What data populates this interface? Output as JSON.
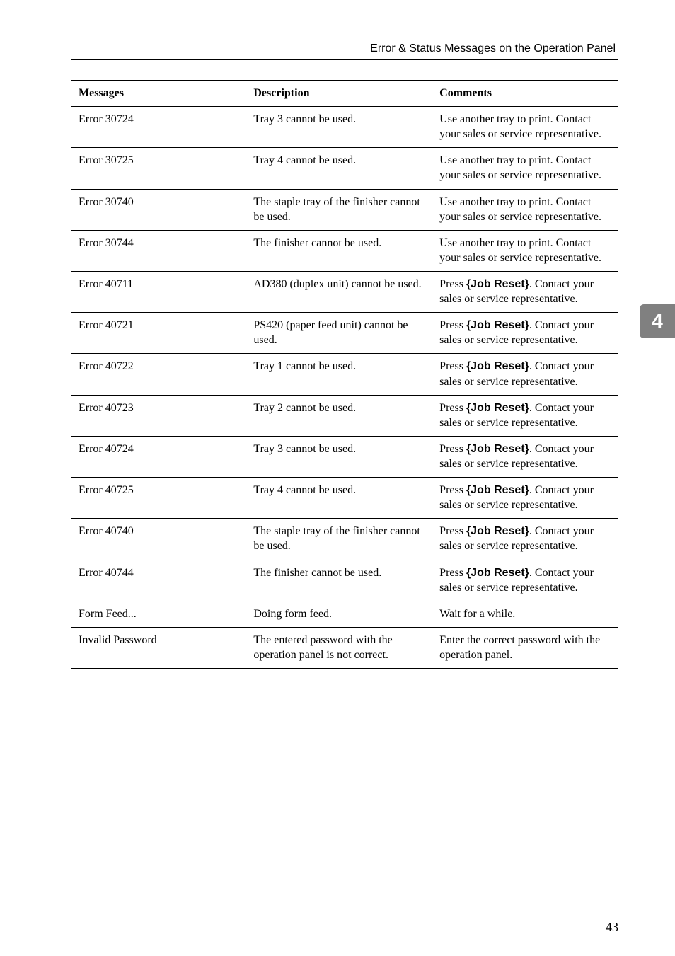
{
  "header": {
    "title": "Error & Status Messages on the Operation Panel"
  },
  "sideTab": {
    "label": "4"
  },
  "pageNumber": "43",
  "table": {
    "columns": [
      "Messages",
      "Description",
      "Comments"
    ],
    "rows": [
      {
        "msg": "Error 30724",
        "desc": "Tray 3 cannot be used.",
        "comm_pre": "Use another tray to print. Contact your sales or service representative.",
        "key": "",
        "comm_post": ""
      },
      {
        "msg": "Error 30725",
        "desc": "Tray 4 cannot be used.",
        "comm_pre": "Use another tray to print. Contact your sales or service representative.",
        "key": "",
        "comm_post": ""
      },
      {
        "msg": "Error 30740",
        "desc": "The staple tray of the finisher cannot be used.",
        "comm_pre": "Use another tray to print. Contact your sales or service representative.",
        "key": "",
        "comm_post": ""
      },
      {
        "msg": "Error 30744",
        "desc": "The finisher cannot be used.",
        "comm_pre": "Use another tray to print. Contact your sales or service representative.",
        "key": "",
        "comm_post": ""
      },
      {
        "msg": "Error 40711",
        "desc": "AD380 (duplex unit) cannot be used.",
        "comm_pre": "Press ",
        "key": "{Job Reset}",
        "comm_post": ". Contact your sales or service representative."
      },
      {
        "msg": "Error 40721",
        "desc": "PS420 (paper feed unit) cannot be used.",
        "comm_pre": "Press ",
        "key": "{Job Reset}",
        "comm_post": ". Contact your sales or service representative."
      },
      {
        "msg": "Error 40722",
        "desc": "Tray 1 cannot be used.",
        "comm_pre": "Press ",
        "key": "{Job Reset}",
        "comm_post": ". Contact your sales or service representative."
      },
      {
        "msg": "Error 40723",
        "desc": "Tray 2 cannot be used.",
        "comm_pre": "Press ",
        "key": "{Job Reset}",
        "comm_post": ". Contact your sales or service representative."
      },
      {
        "msg": "Error 40724",
        "desc": "Tray 3 cannot be used.",
        "comm_pre": "Press ",
        "key": "{Job Reset}",
        "comm_post": ". Contact your sales or service representative."
      },
      {
        "msg": "Error 40725",
        "desc": "Tray 4 cannot be used.",
        "comm_pre": "Press ",
        "key": "{Job Reset}",
        "comm_post": ". Contact your sales or service representative."
      },
      {
        "msg": "Error 40740",
        "desc": "The staple tray of the finisher cannot be used.",
        "comm_pre": "Press ",
        "key": "{Job Reset}",
        "comm_post": ". Contact your sales or service representative."
      },
      {
        "msg": "Error 40744",
        "desc": "The finisher cannot be used.",
        "comm_pre": "Press ",
        "key": "{Job Reset}",
        "comm_post": ". Contact your sales or service representative."
      },
      {
        "msg": "Form Feed...",
        "desc": "Doing form feed.",
        "comm_pre": "Wait for a while.",
        "key": "",
        "comm_post": ""
      },
      {
        "msg": "Invalid Password",
        "desc": "The entered password with the operation panel is not correct.",
        "comm_pre": "Enter the correct password with the operation panel.",
        "key": "",
        "comm_post": ""
      }
    ]
  }
}
